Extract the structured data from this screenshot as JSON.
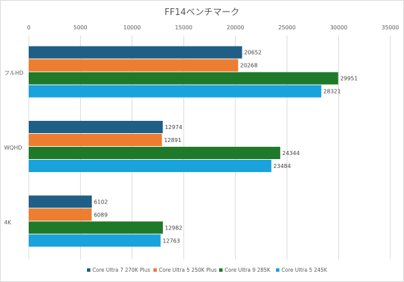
{
  "chart_data": {
    "type": "bar",
    "orientation": "horizontal",
    "title": "FF14ベンチマーク",
    "categories": [
      "フルHD",
      "WQHD",
      "4K"
    ],
    "series": [
      {
        "name": "Core Ultra 7 270K Plus",
        "color": "#1f5f86",
        "values": [
          20652,
          12974,
          6102
        ]
      },
      {
        "name": "Core Ultra 5 250K Plus",
        "color": "#ed7d31",
        "values": [
          20268,
          12891,
          6089
        ]
      },
      {
        "name": "Core Ultra 9 285K",
        "color": "#1e7a28",
        "values": [
          29951,
          24344,
          12982
        ]
      },
      {
        "name": "Core Ultra 5 245K",
        "color": "#19a2dc",
        "values": [
          28321,
          23484,
          12763
        ]
      }
    ],
    "xlim": [
      0,
      35000
    ],
    "xticks": [
      "0",
      "5000",
      "10000",
      "15000",
      "20000",
      "25000",
      "30000",
      "35000"
    ],
    "grid": true,
    "legend": "bottom",
    "data_labels": true
  }
}
